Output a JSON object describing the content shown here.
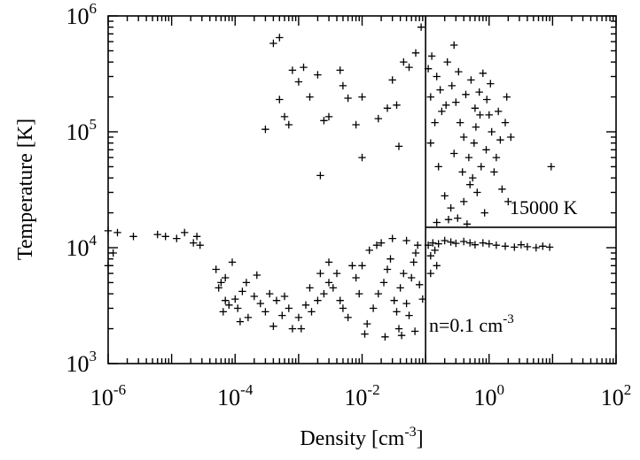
{
  "chart_data": {
    "type": "scatter",
    "title": "",
    "xlabel": "Density [cm-3]",
    "xlabel_parts": {
      "base": "Density [cm",
      "exp": "-3",
      "close": "]"
    },
    "ylabel": "Temperature [K]",
    "xscale": "log",
    "yscale": "log",
    "xlim": [
      1e-06,
      100
    ],
    "ylim": [
      1000,
      1000000
    ],
    "grid": false,
    "marker": "plus",
    "x_ticks": [
      {
        "base": "10",
        "exp": "-6"
      },
      {
        "base": "10",
        "exp": "-4"
      },
      {
        "base": "10",
        "exp": "-2"
      },
      {
        "base": "10",
        "exp": "0"
      },
      {
        "base": "10",
        "exp": "2"
      }
    ],
    "y_ticks": [
      {
        "base": "10",
        "exp": "3"
      },
      {
        "base": "10",
        "exp": "4"
      },
      {
        "base": "10",
        "exp": "5"
      },
      {
        "base": "10",
        "exp": "6"
      }
    ],
    "reference_lines": [
      {
        "orientation": "vertical",
        "x": 0.1
      },
      {
        "orientation": "horizontal",
        "y": 15000,
        "x_from": 0.1
      }
    ],
    "annotations": [
      {
        "id": "temp-threshold",
        "text": "15000 K",
        "x": 0.22,
        "y": 17500
      },
      {
        "id": "density-threshold",
        "base": "n=0.1 cm",
        "exp": "-3",
        "x": 0.105,
        "y": 2400
      }
    ],
    "series": [
      {
        "points": [
          [
            1e-06,
            14000
          ],
          [
            1.4e-06,
            13500
          ],
          [
            2.5e-06,
            12500
          ],
          [
            1.2e-06,
            9000
          ],
          [
            1e-06,
            7000
          ],
          [
            6e-06,
            13000
          ],
          [
            8e-06,
            12500
          ],
          [
            1.2e-05,
            12000
          ],
          [
            1.6e-05,
            13500
          ],
          [
            2.2e-05,
            11000
          ],
          [
            2.5e-05,
            12500
          ],
          [
            2.8e-05,
            10500
          ],
          [
            5e-05,
            6500
          ],
          [
            5.5e-05,
            4500
          ],
          [
            6e-05,
            5000
          ],
          [
            7e-05,
            3500
          ],
          [
            8e-05,
            3200
          ],
          [
            6.5e-05,
            2800
          ],
          [
            9e-05,
            7500
          ],
          [
            7e-05,
            5500
          ],
          [
            0.00011,
            3000
          ],
          [
            0.00013,
            4200
          ],
          [
            0.00016,
            2500
          ],
          [
            0.0002,
            3800
          ],
          [
            0.00025,
            3300
          ],
          [
            0.0003,
            2800
          ],
          [
            0.00035,
            4000
          ],
          [
            0.0004,
            2100
          ],
          [
            0.00045,
            3500
          ],
          [
            0.00055,
            2600
          ],
          [
            0.0006,
            3800
          ],
          [
            0.0007,
            3000
          ],
          [
            0.0008,
            2000
          ],
          [
            0.00012,
            2300
          ],
          [
            0.00015,
            5000
          ],
          [
            0.00022,
            5800
          ],
          [
            0.0001,
            3600
          ],
          [
            0.001,
            2500
          ],
          [
            0.0013,
            3200
          ],
          [
            0.0016,
            2800
          ],
          [
            0.002,
            3500
          ],
          [
            0.0025,
            4000
          ],
          [
            0.003,
            5000
          ],
          [
            0.0035,
            4500
          ],
          [
            0.004,
            6000
          ],
          [
            0.005,
            3000
          ],
          [
            0.006,
            2500
          ],
          [
            0.007,
            7000
          ],
          [
            0.008,
            5500
          ],
          [
            0.009,
            4000
          ],
          [
            0.0011,
            2000
          ],
          [
            0.0022,
            6000
          ],
          [
            0.003,
            7500
          ],
          [
            0.0015,
            4500
          ],
          [
            0.0045,
            3500
          ],
          [
            0.012,
            2200
          ],
          [
            0.015,
            3000
          ],
          [
            0.018,
            4000
          ],
          [
            0.022,
            5000
          ],
          [
            0.025,
            6500
          ],
          [
            0.028,
            8000
          ],
          [
            0.032,
            3500
          ],
          [
            0.035,
            2800
          ],
          [
            0.04,
            4500
          ],
          [
            0.045,
            6000
          ],
          [
            0.05,
            3300
          ],
          [
            0.055,
            2600
          ],
          [
            0.06,
            5500
          ],
          [
            0.065,
            7500
          ],
          [
            0.07,
            9000
          ],
          [
            0.08,
            4800
          ],
          [
            0.09,
            3600
          ],
          [
            0.01,
            7000
          ],
          [
            0.013,
            9500
          ],
          [
            0.017,
            10500
          ],
          [
            0.02,
            11000
          ],
          [
            0.03,
            12000
          ],
          [
            0.05,
            11500
          ],
          [
            0.075,
            10500
          ],
          [
            0.011,
            1800
          ],
          [
            0.023,
            1700
          ],
          [
            0.042,
            1750
          ],
          [
            0.068,
            1900
          ],
          [
            0.038,
            2000
          ],
          [
            0.11,
            10500
          ],
          [
            0.13,
            11000
          ],
          [
            0.16,
            10800
          ],
          [
            0.2,
            11500
          ],
          [
            0.25,
            11200
          ],
          [
            0.3,
            10900
          ],
          [
            0.4,
            11300
          ],
          [
            0.5,
            11000
          ],
          [
            0.6,
            10600
          ],
          [
            0.8,
            11000
          ],
          [
            1.0,
            10800
          ],
          [
            1.3,
            10500
          ],
          [
            1.8,
            10300
          ],
          [
            2.5,
            10100
          ],
          [
            3.2,
            10600
          ],
          [
            4.0,
            10200
          ],
          [
            5.5,
            10000
          ],
          [
            7.0,
            10300
          ],
          [
            9.0,
            10100
          ],
          [
            0.12,
            8500
          ],
          [
            0.15,
            7000
          ],
          [
            0.12,
            6000
          ],
          [
            0.14,
            9500
          ],
          [
            0.0004,
            580000
          ],
          [
            0.0005,
            650000
          ],
          [
            0.0008,
            340000
          ],
          [
            0.0012,
            360000
          ],
          [
            0.001,
            270000
          ],
          [
            0.0015,
            200000
          ],
          [
            0.0005,
            190000
          ],
          [
            0.0006,
            135000
          ],
          [
            0.0007,
            115000
          ],
          [
            0.0003,
            105000
          ],
          [
            0.0025,
            125000
          ],
          [
            0.003,
            135000
          ],
          [
            0.0022,
            42000
          ],
          [
            0.005,
            250000
          ],
          [
            0.0045,
            340000
          ],
          [
            0.006,
            195000
          ],
          [
            0.01,
            60000
          ],
          [
            0.008,
            115000
          ],
          [
            0.018,
            130000
          ],
          [
            0.025,
            160000
          ],
          [
            0.03,
            280000
          ],
          [
            0.038,
            75000
          ],
          [
            0.045,
            400000
          ],
          [
            0.055,
            360000
          ],
          [
            0.07,
            480000
          ],
          [
            0.085,
            800000
          ],
          [
            0.01,
            200000
          ],
          [
            0.002,
            310000
          ],
          [
            0.035,
            170000
          ],
          [
            0.12,
            200000
          ],
          [
            0.15,
            300000
          ],
          [
            0.18,
            150000
          ],
          [
            0.22,
            400000
          ],
          [
            0.26,
            250000
          ],
          [
            0.3,
            180000
          ],
          [
            0.35,
            120000
          ],
          [
            0.4,
            90000
          ],
          [
            0.48,
            60000
          ],
          [
            0.55,
            40000
          ],
          [
            0.65,
            30000
          ],
          [
            0.75,
            50000
          ],
          [
            0.9,
            70000
          ],
          [
            1.1,
            100000
          ],
          [
            1.4,
            150000
          ],
          [
            1.8,
            120000
          ],
          [
            0.12,
            80000
          ],
          [
            0.16,
            50000
          ],
          [
            0.2,
            28000
          ],
          [
            0.25,
            22000
          ],
          [
            0.32,
            18000
          ],
          [
            0.4,
            25000
          ],
          [
            0.5,
            35000
          ],
          [
            0.6,
            160000
          ],
          [
            0.7,
            220000
          ],
          [
            0.8,
            320000
          ],
          [
            1.0,
            140000
          ],
          [
            1.3,
            60000
          ],
          [
            1.6,
            32000
          ],
          [
            2.0,
            25000
          ],
          [
            0.11,
            350000
          ],
          [
            0.14,
            120000
          ],
          [
            0.28,
            65000
          ],
          [
            0.38,
            45000
          ],
          [
            0.52,
            280000
          ],
          [
            0.62,
            110000
          ],
          [
            0.85,
            20000
          ],
          [
            1.2,
            45000
          ],
          [
            2.2,
            90000
          ],
          [
            0.28,
            560000
          ],
          [
            9.5,
            50000
          ],
          [
            0.15,
            16500
          ],
          [
            0.23,
            17500
          ],
          [
            0.45,
            16000
          ],
          [
            0.125,
            450000
          ],
          [
            0.17,
            230000
          ],
          [
            0.21,
            170000
          ],
          [
            0.33,
            330000
          ],
          [
            0.43,
            210000
          ],
          [
            0.58,
            80000
          ],
          [
            0.72,
            140000
          ],
          [
            0.92,
            190000
          ],
          [
            1.05,
            260000
          ],
          [
            1.5,
            85000
          ],
          [
            1.9,
            200000
          ]
        ]
      }
    ]
  }
}
